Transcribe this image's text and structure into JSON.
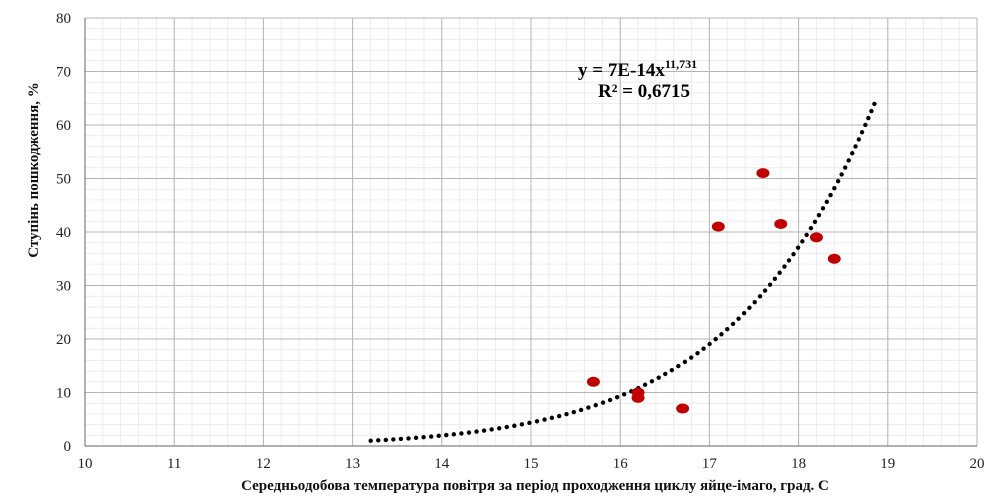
{
  "chart_data": {
    "type": "scatter",
    "xlabel": "Середньодобова температура повітря за період проходження циклу яйце-імаго, град. С",
    "ylabel": "Ступінь пошкодження, %",
    "xlim": [
      10,
      20
    ],
    "ylim": [
      0,
      80
    ],
    "x_ticks": [
      10,
      11,
      12,
      13,
      14,
      15,
      16,
      17,
      18,
      19,
      20
    ],
    "y_ticks": [
      0,
      10,
      20,
      30,
      40,
      50,
      60,
      70,
      80
    ],
    "grid": true,
    "minor_grid": true,
    "series": [
      {
        "points": [
          {
            "x": 15.7,
            "y": 12
          },
          {
            "x": 16.2,
            "y": 9
          },
          {
            "x": 16.2,
            "y": 10
          },
          {
            "x": 16.7,
            "y": 7
          },
          {
            "x": 17.1,
            "y": 41
          },
          {
            "x": 17.6,
            "y": 51
          },
          {
            "x": 17.8,
            "y": 41.5
          },
          {
            "x": 18.2,
            "y": 39
          },
          {
            "x": 18.4,
            "y": 35
          }
        ],
        "color": "#c00000"
      }
    ],
    "trendline": {
      "type": "power",
      "coefficient": 7e-14,
      "exponent": 11.731,
      "x_range": [
        13.2,
        18.85
      ],
      "style": "dotted",
      "color": "#000000",
      "equation_base": "y = 7E-14x",
      "equation_exponent": "11,731",
      "r_squared_label": "R² = 0,6715"
    }
  }
}
